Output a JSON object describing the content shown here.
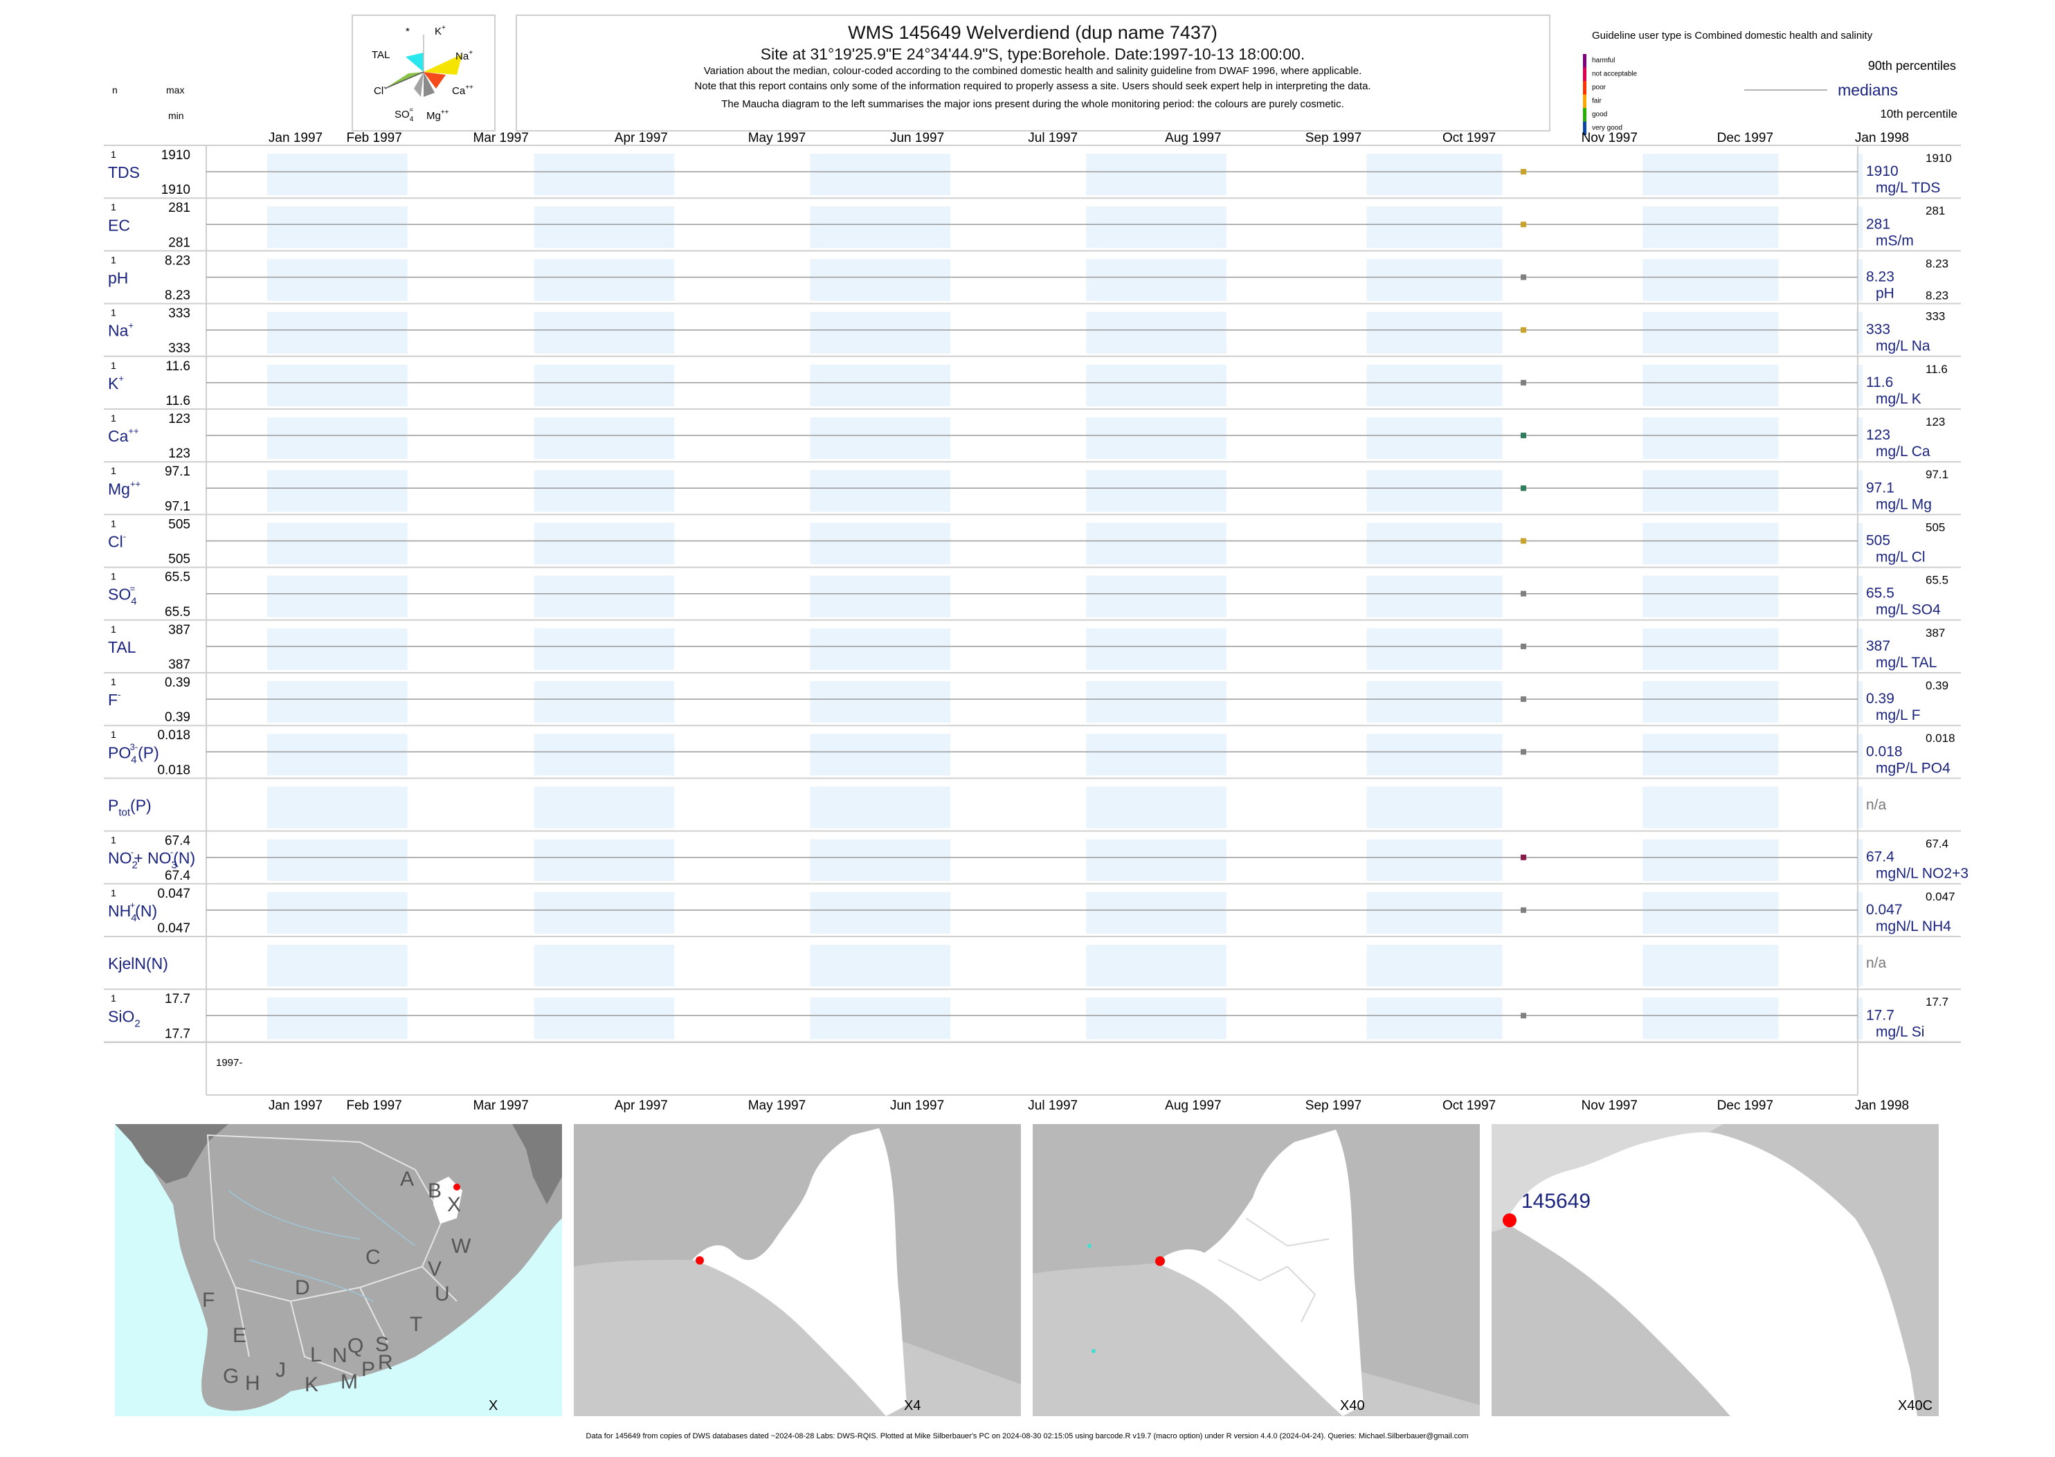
{
  "header": {
    "title": "WMS 145649  Welverdiend (dup name 7437)",
    "subtitle": "Site at 31°19'25.9\"E 24°34'44.9\"S, type:Borehole. Date:1997-10-13 18:00:00.",
    "line1": "Variation about the median,  colour-coded according to the combined domestic health and salinity guideline from DWAF 1996, where applicable.",
    "line2": "Note that this report contains only some of the information required to properly assess a site. Users should seek expert help in interpreting the data.",
    "line3": "The Maucha diagram to the left summarises the major ions present during the whole monitoring period: the colours are purely cosmetic.",
    "guideline_type": "Guideline user type is Combined domestic health and salinity"
  },
  "col_headers": {
    "n": "n",
    "max": "max",
    "min": "min"
  },
  "maucha": {
    "labels": {
      "star": "*",
      "k": "K",
      "k_sup": "+",
      "tal": "TAL",
      "na": "Na",
      "na_sup": "+",
      "cl": "Cl",
      "cl_sup": "-",
      "ca": "Ca",
      "ca_sup": "++",
      "so4": "SO",
      "so4_sub": "4",
      "so4_sup": "=",
      "mg": "Mg",
      "mg_sup": "++"
    },
    "colors": {
      "k": "#9e9e9e",
      "na": "#f5e400",
      "ca": "#f44a1b",
      "mg": "#8a8a8a",
      "so4": "#a3a3a3",
      "cl": "#8bc34a",
      "tal": "#29e7ef"
    }
  },
  "legend": {
    "levels": [
      {
        "label": "harmful",
        "color": "#800080"
      },
      {
        "label": "not acceptable",
        "color": "#e0004e"
      },
      {
        "label": "poor",
        "color": "#ff3300"
      },
      {
        "label": "fair",
        "color": "#ffa500"
      },
      {
        "label": "good",
        "color": "#27b000"
      },
      {
        "label": "very good",
        "color": "#0d47a1"
      }
    ],
    "p90": "90th percentiles",
    "medians": "medians",
    "p10": "10th percentile"
  },
  "chart_data": {
    "type": "scatter",
    "x_axis": {
      "range": [
        "1997-01-01",
        "1998-01-01"
      ],
      "tick_labels": [
        "Jan 1997",
        "Feb 1997",
        "Mar 1997",
        "Apr 1997",
        "May 1997",
        "Jun 1997",
        "Jul 1997",
        "Aug 1997",
        "Sep 1997",
        "Oct 1997",
        "Nov 1997",
        "Dec 1997",
        "Jan 1998"
      ],
      "start_label": "1997-"
    },
    "sample_date": "1997-10-13",
    "panels": [
      {
        "name": "TDS",
        "n": "1",
        "max": "1910",
        "min": "1910",
        "median": "1910",
        "p90": "1910",
        "p10": "",
        "unit": "mg/L TDS",
        "value": 1910,
        "color": "#c9a227"
      },
      {
        "name": "EC",
        "n": "1",
        "max": "281",
        "min": "281",
        "median": "281",
        "p90": "281",
        "p10": "",
        "unit": "mS/m",
        "value": 281,
        "color": "#c9a227"
      },
      {
        "name": "pH",
        "n": "1",
        "max": "8.23",
        "min": "8.23",
        "median": "8.23",
        "p90": "8.23",
        "p10": "8.23",
        "unit": "pH",
        "value": 8.23,
        "color": "#7f7f7f"
      },
      {
        "name": "Na",
        "sup": "+",
        "n": "1",
        "max": "333",
        "min": "333",
        "median": "333",
        "p90": "333",
        "p10": "",
        "unit": "mg/L Na",
        "value": 333,
        "color": "#c9a227"
      },
      {
        "name": "K",
        "sup": "+",
        "n": "1",
        "max": "11.6",
        "min": "11.6",
        "median": "11.6",
        "p90": "11.6",
        "p10": "",
        "unit": "mg/L K",
        "value": 11.6,
        "color": "#7f7f7f"
      },
      {
        "name": "Ca",
        "sup": "++",
        "n": "1",
        "max": "123",
        "min": "123",
        "median": "123",
        "p90": "123",
        "p10": "",
        "unit": "mg/L Ca",
        "value": 123,
        "color": "#2e7d5b"
      },
      {
        "name": "Mg",
        "sup": "++",
        "n": "1",
        "max": "97.1",
        "min": "97.1",
        "median": "97.1",
        "p90": "97.1",
        "p10": "",
        "unit": "mg/L Mg",
        "value": 97.1,
        "color": "#2e7d5b"
      },
      {
        "name": "Cl",
        "sup": "-",
        "n": "1",
        "max": "505",
        "min": "505",
        "median": "505",
        "p90": "505",
        "p10": "",
        "unit": "mg/L Cl",
        "value": 505,
        "color": "#c9a227"
      },
      {
        "name": "SO",
        "sub": "4",
        "sup": "=",
        "n": "1",
        "max": "65.5",
        "min": "65.5",
        "median": "65.5",
        "p90": "65.5",
        "p10": "",
        "unit": "mg/L SO4",
        "value": 65.5,
        "color": "#7f7f7f"
      },
      {
        "name": "TAL",
        "n": "1",
        "max": "387",
        "min": "387",
        "median": "387",
        "p90": "387",
        "p10": "",
        "unit": "mg/L TAL",
        "value": 387,
        "color": "#7f7f7f"
      },
      {
        "name": "F",
        "sup": "-",
        "n": "1",
        "max": "0.39",
        "min": "0.39",
        "median": "0.39",
        "p90": "0.39",
        "p10": "",
        "unit": "mg/L F",
        "value": 0.39,
        "color": "#7f7f7f"
      },
      {
        "name": "PO",
        "sub": "4",
        "sup": "3-",
        "tail": "(P)",
        "n": "1",
        "max": "0.018",
        "min": "0.018",
        "median": "0.018",
        "p90": "0.018",
        "p10": "",
        "unit": "mgP/L PO4",
        "value": 0.018,
        "color": "#7f7f7f"
      },
      {
        "name": "P",
        "sub": "tot",
        "tail": "(P)",
        "n": "",
        "max": "",
        "min": "",
        "median": "n/a",
        "p90": "",
        "p10": "",
        "unit": "",
        "value": null,
        "color": "#7f7f7f"
      },
      {
        "name": "NO",
        "sub": "2",
        "sup": "-",
        "tail": "+ NO",
        "sub2": "3",
        "sup2": "-",
        "tail2": "(N)",
        "n": "1",
        "max": "67.4",
        "min": "67.4",
        "median": "67.4",
        "p90": "67.4",
        "p10": "",
        "unit": "mgN/L NO2+3",
        "value": 67.4,
        "color": "#8b1a4a"
      },
      {
        "name": "NH",
        "sub": "4",
        "sup": "+",
        "tail": "(N)",
        "n": "1",
        "max": "0.047",
        "min": "0.047",
        "median": "0.047",
        "p90": "0.047",
        "p10": "",
        "unit": "mgN/L NH4",
        "value": 0.047,
        "color": "#7f7f7f"
      },
      {
        "name": "KjelN(N)",
        "n": "",
        "max": "",
        "min": "",
        "median": "n/a",
        "p90": "",
        "p10": "",
        "unit": "",
        "value": null,
        "color": "#7f7f7f"
      },
      {
        "name": "SiO",
        "sub": "2",
        "n": "1",
        "max": "17.7",
        "min": "17.7",
        "median": "17.7",
        "p90": "17.7",
        "p10": "",
        "unit": "mg/L Si",
        "value": 17.7,
        "color": "#7f7f7f"
      }
    ]
  },
  "maps": {
    "regions": [
      "A",
      "B",
      "X",
      "C",
      "W",
      "D",
      "V",
      "U",
      "F",
      "T",
      "E",
      "L",
      "N",
      "Q",
      "S",
      "J",
      "G",
      "H",
      "K",
      "M",
      "P",
      "R"
    ],
    "labels": [
      "X",
      "X4",
      "X40",
      "X40C"
    ],
    "site_label": "145649",
    "site_color": "#ff0000",
    "sea_color": "#d4fbfb",
    "land_color": "#a9a9a9"
  },
  "footer": "Data for 145649 from copies of DWS databases dated ~2024-08-28 Labs: DWS-RQIS. Plotted at Mike Silberbauer's PC on 2024-08-30 02:15:05 using barcode.R v19.7 (macro option) under R version 4.4.0 (2024-04-24). Queries: Michael.Silberbauer@gmail.com"
}
